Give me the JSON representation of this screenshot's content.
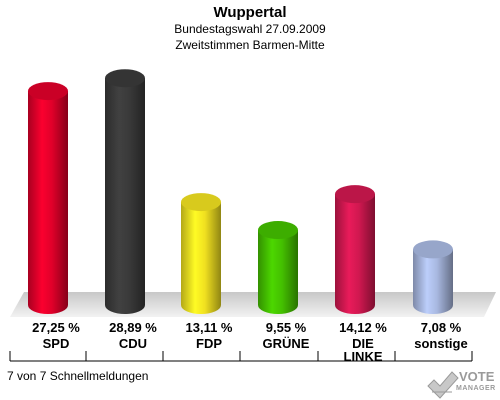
{
  "header": {
    "title": "Wuppertal",
    "subtitle1": "Bundestagswahl 27.09.2009",
    "subtitle2": "Zweitstimmen Barmen-Mitte"
  },
  "footer": {
    "text": "7 von 7 Schnellmeldungen"
  },
  "logo": {
    "line1": "VOTE",
    "line2": "MANAGER",
    "icon": "vote-check-icon"
  },
  "chart_data": {
    "type": "bar",
    "title": "Wuppertal",
    "categories": [
      "SPD",
      "CDU",
      "FDP",
      "GRÜNE",
      "DIE LINKE",
      "sonstige"
    ],
    "values": [
      27.25,
      28.89,
      13.11,
      9.55,
      14.12,
      7.08
    ],
    "value_labels": [
      "27,25 %",
      "28,89 %",
      "13,11 %",
      "9,55 %",
      "14,12 %",
      "7,08 %"
    ],
    "colors": [
      "#e0002a",
      "#3a3a3a",
      "#f0e020",
      "#44c000",
      "#d01850",
      "#a8b8e0"
    ],
    "grid": false,
    "legend": "none"
  }
}
